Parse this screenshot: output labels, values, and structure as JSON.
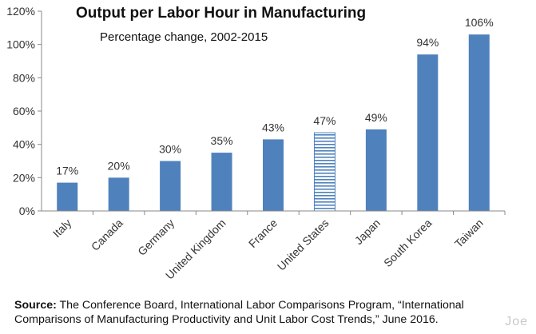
{
  "chart_data": {
    "type": "bar",
    "title": "Output per Labor Hour in Manufacturing",
    "subtitle": "Percentage change, 2002-2015",
    "categories": [
      "Italy",
      "Canada",
      "Germany",
      "United Kingdom",
      "France",
      "United States",
      "Japan",
      "South Korea",
      "Taiwan"
    ],
    "values": [
      17,
      20,
      30,
      35,
      43,
      47,
      49,
      94,
      106
    ],
    "data_labels": [
      "17%",
      "20%",
      "30%",
      "35%",
      "43%",
      "47%",
      "49%",
      "94%",
      "106%"
    ],
    "highlighted_category": "United States",
    "ylim": [
      0,
      120
    ],
    "yticks": [
      0,
      20,
      40,
      60,
      80,
      100,
      120
    ],
    "ytick_labels": [
      "0%",
      "20%",
      "40%",
      "60%",
      "80%",
      "100%",
      "120%"
    ],
    "xlabel": "",
    "ylabel": "",
    "grid": false,
    "bar_color": "#4f81bd",
    "highlight_pattern": "horizontal-stripes"
  },
  "source": {
    "label": "Source:",
    "text": " The Conference Board, International Labor Comparisons Program, “International Comparisons of Manufacturing Productivity and Unit Labor Cost Trends,” June 2016."
  },
  "watermark": "Joe"
}
